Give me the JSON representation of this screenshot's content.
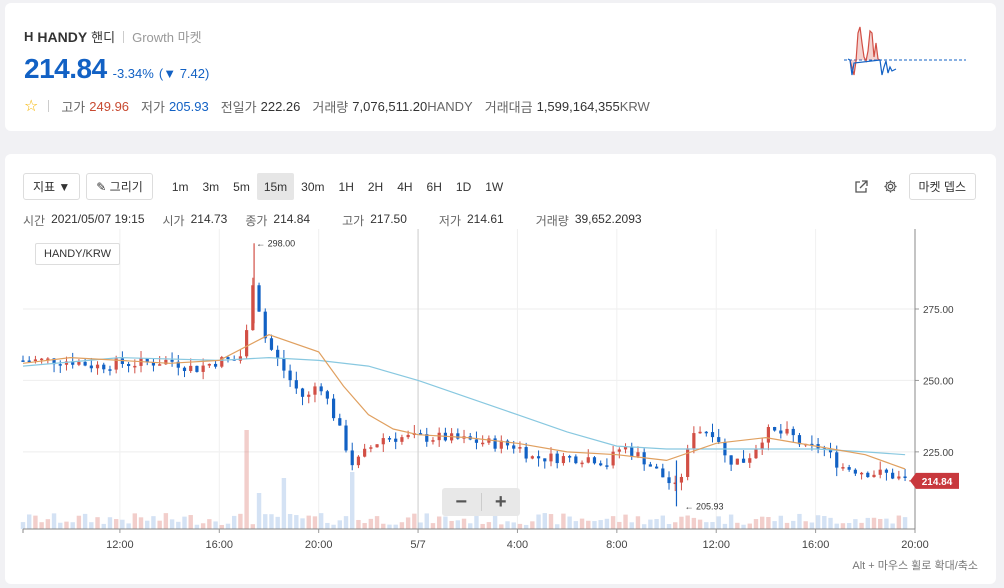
{
  "header": {
    "logo_text": "H",
    "ticker": "HANDY",
    "name_kor": "핸디",
    "market": "Growth 마켓",
    "price": "214.84",
    "change_rate": "-3.34%",
    "change_amount": "7.42",
    "change_prefix": "(",
    "change_suffix": ")",
    "down_arrow": "▼",
    "star": "☆",
    "stats": {
      "high_label": "고가",
      "high_value": "249.96",
      "low_label": "저가",
      "low_value": "205.93",
      "prev_label": "전일가",
      "prev_value": "222.26",
      "volume_label": "거래량",
      "volume_value": "7,076,511.20",
      "volume_unit": "HANDY",
      "amount_label": "거래대금",
      "amount_value": "1,599,164,355",
      "amount_unit": "KRW"
    }
  },
  "toolbar": {
    "indicator_label": "지표 ▼",
    "draw_label": "✎ 그리기",
    "timeframes": [
      "1m",
      "3m",
      "5m",
      "15m",
      "30m",
      "1H",
      "2H",
      "4H",
      "6H",
      "1D",
      "1W"
    ],
    "active_timeframe": "15m",
    "market_depth_label": "마켓 뎁스",
    "external_icon": "external-link-icon",
    "settings_icon": "gear-icon"
  },
  "ohlc": {
    "time_label": "시간",
    "time_value": "2021/05/07 19:15",
    "open_label": "시가",
    "open_value": "214.73",
    "close_label": "종가",
    "close_value": "214.84",
    "high_label": "고가",
    "high_value": "217.50",
    "low_label": "저가",
    "low_value": "214.61",
    "volume_label": "거래량",
    "volume_value": "39,652.2093"
  },
  "pair_label": "HANDY/KRW",
  "zoom": {
    "minus": "−",
    "plus": "+"
  },
  "hint": "Alt + 마우스 휠로 확대/축소",
  "colors": {
    "up": "#d24f45",
    "down": "#1261c4",
    "ma_short": "#e0a060",
    "ma_long": "#88c8e0"
  },
  "chart_data": {
    "type": "candlestick",
    "y_ticks": [
      "275.00",
      "250.00",
      "225.00"
    ],
    "y_tick_values": [
      275,
      250,
      225
    ],
    "ylim": [
      198,
      303
    ],
    "x_ticks": [
      "12:00",
      "16:00",
      "20:00",
      "5/7",
      "4:00",
      "8:00",
      "12:00",
      "16:00",
      "20:00"
    ],
    "x_tick_hours": [
      12,
      16,
      20,
      24,
      28,
      32,
      36,
      40,
      44
    ],
    "xlim_hours": [
      8.1,
      44
    ],
    "max_label": "← 298.00",
    "max_value": 298.0,
    "max_hour": 17.4,
    "min_label": "← 205.93",
    "min_value": 205.93,
    "min_hour": 34.4,
    "last_price_label": "214.84",
    "last_price": 214.84,
    "anchors": [
      [
        8.1,
        257
      ],
      [
        9,
        257
      ],
      [
        10,
        257
      ],
      [
        11,
        255
      ],
      [
        12,
        256
      ],
      [
        13,
        256
      ],
      [
        14,
        257
      ],
      [
        15,
        254
      ],
      [
        16,
        257
      ],
      [
        16.8,
        257
      ],
      [
        17.2,
        270
      ],
      [
        17.4,
        290
      ],
      [
        17.7,
        268
      ],
      [
        18,
        262
      ],
      [
        19,
        248
      ],
      [
        19.5,
        243
      ],
      [
        20,
        250
      ],
      [
        20.6,
        238
      ],
      [
        21.4,
        220
      ],
      [
        22,
        226
      ],
      [
        22.6,
        230
      ],
      [
        23.4,
        230
      ],
      [
        24,
        230
      ],
      [
        25,
        230
      ],
      [
        26,
        229
      ],
      [
        27,
        228
      ],
      [
        28,
        227
      ],
      [
        28.6,
        223
      ],
      [
        30,
        223
      ],
      [
        31,
        223
      ],
      [
        31.6,
        221
      ],
      [
        32.2,
        227
      ],
      [
        33,
        223
      ],
      [
        34.4,
        212
      ],
      [
        34.8,
        222
      ],
      [
        35,
        233
      ],
      [
        36,
        232
      ],
      [
        36.4,
        222
      ],
      [
        37.2,
        222
      ],
      [
        38,
        232
      ],
      [
        39,
        231
      ],
      [
        39.6,
        226
      ],
      [
        40.2,
        227
      ],
      [
        41,
        220
      ],
      [
        42,
        218
      ],
      [
        43,
        217
      ],
      [
        43.6,
        215
      ]
    ],
    "volume_spikes": [
      [
        17.2,
        0.33
      ],
      [
        21.3,
        0.19
      ],
      [
        18.5,
        0.17
      ],
      [
        17.5,
        0.12
      ]
    ],
    "ma_short": [
      [
        8.1,
        256
      ],
      [
        10,
        258
      ],
      [
        12,
        257
      ],
      [
        14,
        256
      ],
      [
        16,
        257
      ],
      [
        18,
        266
      ],
      [
        20,
        260
      ],
      [
        21,
        248
      ],
      [
        22,
        238
      ],
      [
        23,
        233
      ],
      [
        24,
        231
      ],
      [
        26,
        230
      ],
      [
        28,
        228
      ],
      [
        30,
        225
      ],
      [
        32,
        224
      ],
      [
        34,
        222
      ],
      [
        36,
        228
      ],
      [
        38,
        230
      ],
      [
        40,
        227
      ],
      [
        42,
        224
      ],
      [
        43.6,
        219
      ]
    ],
    "ma_long": [
      [
        8.1,
        255
      ],
      [
        12,
        258
      ],
      [
        16,
        257
      ],
      [
        18,
        258
      ],
      [
        20,
        257
      ],
      [
        22,
        255
      ],
      [
        24,
        250
      ],
      [
        26,
        244
      ],
      [
        28,
        238
      ],
      [
        30,
        232
      ],
      [
        32,
        227
      ],
      [
        34,
        226
      ],
      [
        36,
        226
      ],
      [
        38,
        226
      ],
      [
        40,
        226
      ],
      [
        42,
        225
      ],
      [
        43.6,
        224
      ]
    ]
  }
}
